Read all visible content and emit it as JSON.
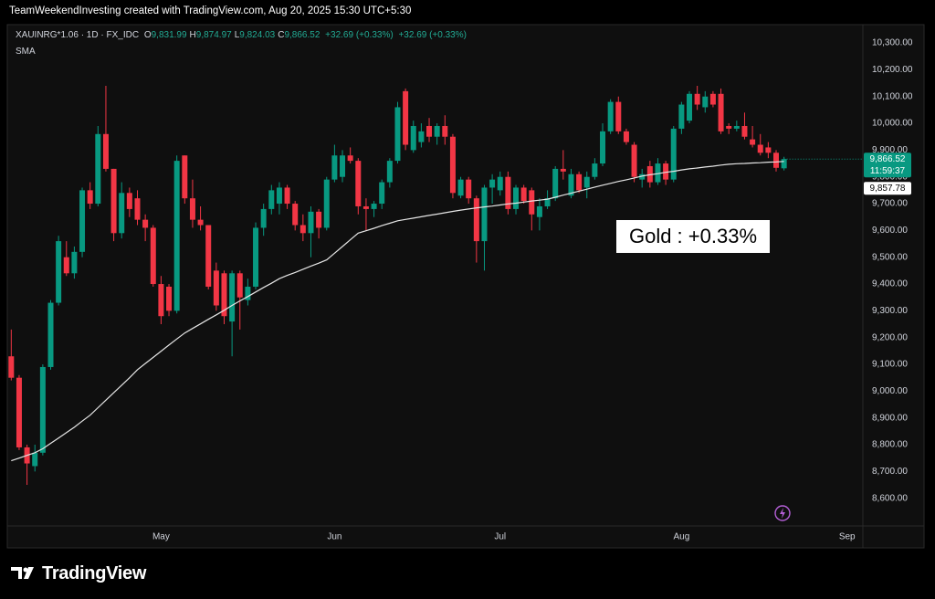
{
  "header": "TeamWeekendInvesting created with TradingView.com, Aug 20, 2025 15:30 UTC+5:30",
  "logo": "TradingView",
  "chart_data": {
    "type": "candlestick",
    "legend": {
      "symbol": "XAUINRG*1.06 · 1D · FX_IDC",
      "ohlc": [
        {
          "key": "O",
          "value": "9,831.99"
        },
        {
          "key": "H",
          "value": "9,874.97"
        },
        {
          "key": "L",
          "value": "9,824.03"
        },
        {
          "key": "C",
          "value": "9,866.52"
        }
      ],
      "change": "+32.69 (+0.33%)",
      "change_2": "+32.69 (+0.33%)"
    },
    "annotation": "Gold : +0.33%",
    "last_price_label": "9,866.52",
    "countdown": "11:59:37",
    "up_color": "#089981",
    "down_color": "#f23645",
    "open": [
      9130,
      9050,
      8790,
      8720,
      8770,
      9090,
      9330,
      9500,
      9440,
      9520,
      9750,
      9700,
      9960,
      9830,
      9590,
      9740,
      9720,
      9640,
      9610,
      9400,
      9390,
      9300,
      9880,
      9720,
      9640,
      9620,
      9450,
      9440,
      9260,
      9440,
      9340,
      9390,
      9610,
      9680,
      9700,
      9760,
      9700,
      9620,
      9590,
      9670,
      9610,
      9790,
      9800,
      9880,
      9860,
      9690,
      9680,
      9700,
      9780,
      9860,
      10120,
      9900,
      9930,
      9990,
      9950,
      9990,
      9950,
      9730,
      9790,
      9720,
      9560,
      9760,
      9750,
      9800,
      9680,
      9760,
      9750,
      9650,
      9690,
      9720,
      9830,
      9730,
      9810,
      9760,
      9800,
      9850,
      9970,
      10080,
      9970,
      9920,
      9790,
      9840,
      9780,
      9850,
      9790,
      9980,
      10010,
      10110,
      10060,
      10110,
      10110,
      9990,
      9980,
      9990,
      9940,
      9920,
      9910,
      9890,
      9831.99
    ],
    "high": [
      9230,
      9060,
      8800,
      8800,
      9100,
      9340,
      9580,
      9560,
      9540,
      9760,
      9780,
      9990,
      10140,
      9830,
      9780,
      9760,
      9750,
      9660,
      9620,
      9430,
      9400,
      9880,
      9880,
      9790,
      9690,
      9620,
      9480,
      9450,
      9450,
      9450,
      9420,
      9630,
      9700,
      9770,
      9780,
      9770,
      9710,
      9660,
      9690,
      9680,
      9800,
      9920,
      9900,
      9910,
      9870,
      9720,
      9710,
      9790,
      9870,
      10080,
      10130,
      10010,
      10000,
      10020,
      10000,
      10030,
      9960,
      9800,
      9800,
      9730,
      9770,
      9810,
      9820,
      9820,
      9770,
      9770,
      9760,
      9720,
      9750,
      9840,
      9900,
      9830,
      9820,
      9820,
      9870,
      10000,
      10090,
      10100,
      9980,
      9930,
      9830,
      9860,
      9870,
      9860,
      9990,
      10080,
      10120,
      10140,
      10120,
      10120,
      10130,
      10000,
      10010,
      10040,
      9990,
      9960,
      9930,
      9900,
      9874.97
    ],
    "low": [
      9040,
      8780,
      8650,
      8700,
      8760,
      9080,
      9320,
      9430,
      9420,
      9500,
      9680,
      9690,
      9820,
      9560,
      9570,
      9650,
      9620,
      9560,
      9390,
      9250,
      9280,
      9290,
      9700,
      9610,
      9600,
      9380,
      9300,
      9250,
      9130,
      9230,
      9320,
      9380,
      9580,
      9660,
      9660,
      9680,
      9600,
      9560,
      9500,
      9570,
      9600,
      9780,
      9780,
      9850,
      9660,
      9600,
      9650,
      9680,
      9760,
      9850,
      9900,
      9890,
      9910,
      9930,
      9920,
      9920,
      9720,
      9720,
      9700,
      9480,
      9450,
      9700,
      9730,
      9660,
      9660,
      9700,
      9600,
      9600,
      9680,
      9710,
      9790,
      9720,
      9740,
      9720,
      9790,
      9840,
      9960,
      9960,
      9920,
      9780,
      9760,
      9760,
      9770,
      9770,
      9780,
      9960,
      10000,
      10050,
      10040,
      10060,
      9960,
      9960,
      9970,
      9940,
      9910,
      9880,
      9870,
      9820,
      9824.03
    ],
    "close": [
      9050,
      8790,
      8730,
      8770,
      9090,
      9330,
      9560,
      9440,
      9520,
      9750,
      9700,
      9960,
      9830,
      9590,
      9740,
      9680,
      9640,
      9610,
      9400,
      9280,
      9300,
      9860,
      9720,
      9640,
      9620,
      9390,
      9320,
      9280,
      9440,
      9350,
      9390,
      9610,
      9680,
      9750,
      9760,
      9700,
      9620,
      9590,
      9670,
      9610,
      9790,
      9880,
      9880,
      9860,
      9690,
      9680,
      9700,
      9780,
      9860,
      10060,
      9920,
      9990,
      9970,
      9950,
      9990,
      9950,
      9740,
      9790,
      9720,
      9560,
      9760,
      9790,
      9800,
      9680,
      9760,
      9710,
      9660,
      9690,
      9720,
      9830,
      9820,
      9810,
      9750,
      9800,
      9850,
      9970,
      10080,
      9970,
      9930,
      9800,
      9810,
      9780,
      9850,
      9790,
      9980,
      10070,
      10110,
      10070,
      10100,
      10070,
      9970,
      9980,
      9990,
      9950,
      9920,
      9890,
      9890,
      9833.83,
      9866.52
    ],
    "sma": {
      "name": "SMA",
      "color": "#e6e6e6",
      "value_label": "9,857.78",
      "values": [
        8740,
        8750,
        8760,
        8770,
        8785,
        8805,
        8825,
        8845,
        8865,
        8888,
        8910,
        8938,
        8966,
        8994,
        9022,
        9050,
        9080,
        9103,
        9126,
        9149,
        9172,
        9195,
        9217,
        9234,
        9251,
        9268,
        9285,
        9302,
        9320,
        9337,
        9353,
        9370,
        9387,
        9403,
        9420,
        9432,
        9443,
        9455,
        9467,
        9478,
        9490,
        9515,
        9540,
        9565,
        9590,
        9599,
        9608,
        9618,
        9627,
        9636,
        9641,
        9646,
        9651,
        9656,
        9661,
        9666,
        9671,
        9676,
        9680,
        9684,
        9688,
        9691,
        9695,
        9699,
        9702,
        9706,
        9710,
        9713,
        9717,
        9724,
        9732,
        9739,
        9747,
        9754,
        9762,
        9769,
        9776,
        9783,
        9789,
        9796,
        9803,
        9808,
        9812,
        9817,
        9821,
        9826,
        9830,
        9833,
        9837,
        9840,
        9844,
        9847,
        9849,
        9850,
        9852,
        9853,
        9855,
        9856,
        9857.78
      ]
    },
    "xlim": [
      -0.5,
      108
    ],
    "xticks": [
      {
        "value": 19,
        "label": "May"
      },
      {
        "value": 41,
        "label": "Jun"
      },
      {
        "value": 62,
        "label": "Jul"
      },
      {
        "value": 85,
        "label": "Aug"
      },
      {
        "value": 106,
        "label": "Sep"
      }
    ],
    "ylim": [
      8500,
      10365
    ],
    "yticks": [
      {
        "value": 8600,
        "label": "8,600.00"
      },
      {
        "value": 8700,
        "label": "8,700.00"
      },
      {
        "value": 8800,
        "label": "8,800.00"
      },
      {
        "value": 8900,
        "label": "8,900.00"
      },
      {
        "value": 9000,
        "label": "9,000.00"
      },
      {
        "value": 9100,
        "label": "9,100.00"
      },
      {
        "value": 9200,
        "label": "9,200.00"
      },
      {
        "value": 9300,
        "label": "9,300.00"
      },
      {
        "value": 9400,
        "label": "9,400.00"
      },
      {
        "value": 9500,
        "label": "9,500.00"
      },
      {
        "value": 9600,
        "label": "9,600.00"
      },
      {
        "value": 9700,
        "label": "9,700.00"
      },
      {
        "value": 9800,
        "label": "9,800.00"
      },
      {
        "value": 9900,
        "label": "9,900.00"
      },
      {
        "value": 10000,
        "label": "10,000.00"
      },
      {
        "value": 10100,
        "label": "10,100.00"
      },
      {
        "value": 10200,
        "label": "10,200.00"
      },
      {
        "value": 10300,
        "label": "10,300.00"
      }
    ],
    "grid": false
  }
}
